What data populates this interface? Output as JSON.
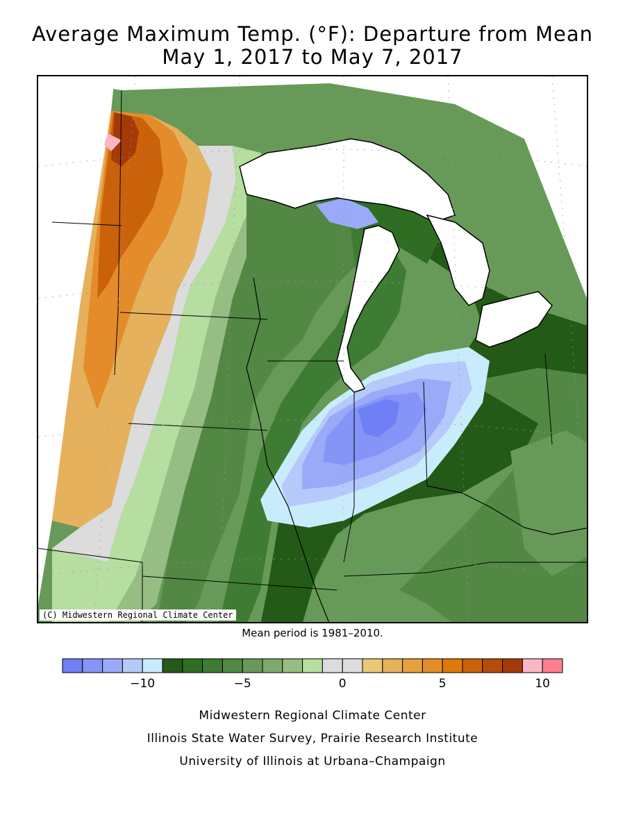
{
  "title": {
    "line1": "Average Maximum Temp. (°F): Departure from Mean",
    "line2": "May 1, 2017 to May 7, 2017"
  },
  "map": {
    "copyright": "(C) Midwestern Regional Climate Center",
    "region": "Upper Midwest / Great Lakes",
    "colors": {
      "water": "#ffffff",
      "border": "#000000"
    }
  },
  "mean_note": "Mean period is 1981–2010.",
  "legend": {
    "min": -14,
    "max": 11,
    "step": 1,
    "bins": [
      {
        "color": "#6f7ff5"
      },
      {
        "color": "#8595f7"
      },
      {
        "color": "#9aaaf8"
      },
      {
        "color": "#b5cafb"
      },
      {
        "color": "#c9ecfd"
      },
      {
        "color": "#245a17"
      },
      {
        "color": "#2f6e22"
      },
      {
        "color": "#3f7c33"
      },
      {
        "color": "#528844"
      },
      {
        "color": "#679a58"
      },
      {
        "color": "#7ea96d"
      },
      {
        "color": "#96bd83"
      },
      {
        "color": "#b5dea0"
      },
      {
        "color": "#dcdcdc"
      },
      {
        "color": "#dcdcdc"
      },
      {
        "color": "#e8c978"
      },
      {
        "color": "#e6b15d"
      },
      {
        "color": "#e5a040"
      },
      {
        "color": "#e48c2a"
      },
      {
        "color": "#e0780a"
      },
      {
        "color": "#c9620a"
      },
      {
        "color": "#b54c0a"
      },
      {
        "color": "#a33a08"
      },
      {
        "color": "#fab6c4"
      },
      {
        "color": "#ff7f90"
      }
    ],
    "tick_labels": [
      {
        "value": -10,
        "text": "−10"
      },
      {
        "value": -5,
        "text": "−5"
      },
      {
        "value": 0,
        "text": "0"
      },
      {
        "value": 5,
        "text": "5"
      },
      {
        "value": 10,
        "text": "10"
      }
    ]
  },
  "credits": {
    "line1": "Midwestern Regional Climate Center",
    "line2": "Illinois State Water Survey, Prairie Research Institute",
    "line3": "University of Illinois at Urbana–Champaign"
  }
}
